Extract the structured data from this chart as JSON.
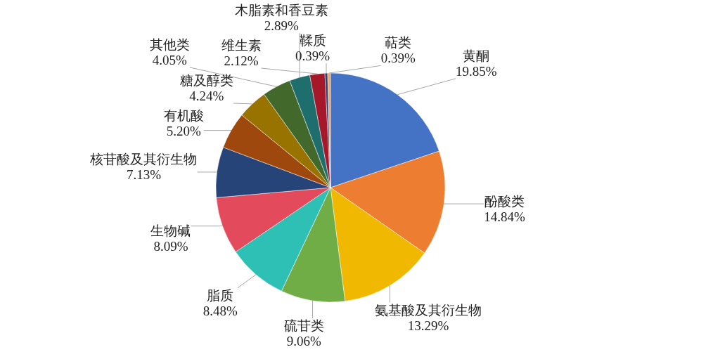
{
  "chart_data": {
    "type": "pie",
    "categories": [
      "黄酮",
      "酚酸类",
      "氨基酸及其衍生物",
      "硫苷类",
      "脂质",
      "生物碱",
      "核苷酸及其衍生物",
      "有机酸",
      "糖及醇类",
      "其他类",
      "木脂素和香豆素",
      "维生素",
      "鞣质",
      "萜类"
    ],
    "values": [
      19.85,
      14.84,
      13.29,
      9.06,
      8.48,
      8.09,
      7.13,
      5.2,
      4.24,
      4.05,
      2.89,
      2.12,
      0.39,
      0.39
    ],
    "value_labels": [
      "19.85%",
      "14.84%",
      "13.29%",
      "9.06%",
      "8.48%",
      "8.09%",
      "7.13%",
      "5.20%",
      "4.24%",
      "4.05%",
      "2.89%",
      "2.12%",
      "0.39%",
      "0.39%"
    ],
    "colors": [
      "#4472c4",
      "#ed7d31",
      "#f0b800",
      "#70ad47",
      "#2ec0b5",
      "#e34b5c",
      "#264478",
      "#9e480e",
      "#997300",
      "#43682b",
      "#1f6e6e",
      "#a5182a",
      "#2f3f7a",
      "#f4a460"
    ]
  }
}
